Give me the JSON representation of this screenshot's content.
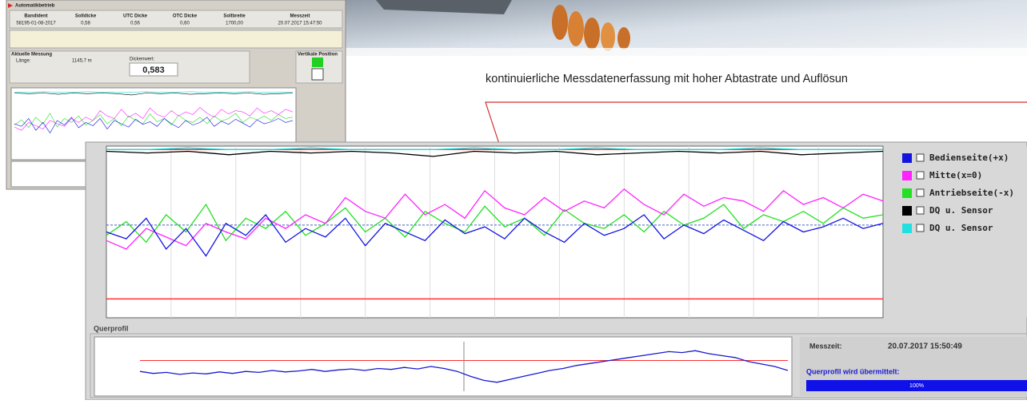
{
  "caption": "kontinuierliche Messdatenerfassung mit hoher Abtastrate und Auflösun",
  "small_screen": {
    "title": "Automatikbetrieb",
    "header": {
      "columns": [
        "Bandident",
        "Solldicke",
        "UTC Dicke",
        "OTC Dicke",
        "Sollbreite",
        "Messzeit"
      ],
      "values": [
        "58195-01-08-2017",
        "0,58",
        "0,56",
        "0,60",
        "1700,00",
        "20.07.2017 15:47:50"
      ]
    },
    "measurement": {
      "title": "Aktuelle Messung",
      "length_label": "Länge:",
      "length": "1145,7 m",
      "thickness_label": "Dickenwert:",
      "thickness": "0,583"
    },
    "position_title": "Vertikale Position"
  },
  "main_screen": {
    "chart": {
      "type": "line",
      "ylim": [
        0,
        100
      ],
      "limits": [
        98,
        11
      ],
      "limit_color": "#ff3030",
      "target": 54,
      "series": [
        {
          "name": "Bedienseite(+x)",
          "color": "#1414e0",
          "values": [
            50,
            46,
            58,
            40,
            52,
            36,
            55,
            48,
            60,
            44,
            52,
            47,
            58,
            42,
            55,
            50,
            45,
            57,
            49,
            53,
            46,
            58,
            50,
            44,
            55,
            48,
            52,
            60,
            46,
            54,
            49,
            57,
            51,
            45,
            56,
            50,
            53,
            58,
            52,
            55
          ]
        },
        {
          "name": "Mitte(x=0)",
          "color": "#ff22ff",
          "values": [
            45,
            40,
            52,
            47,
            42,
            55,
            50,
            46,
            58,
            52,
            60,
            55,
            70,
            62,
            58,
            72,
            60,
            66,
            58,
            74,
            64,
            60,
            70,
            62,
            68,
            64,
            75,
            66,
            60,
            72,
            65,
            70,
            68,
            62,
            74,
            66,
            70,
            64,
            72,
            68
          ]
        },
        {
          "name": "Antriebseite(-x)",
          "color": "#22e022",
          "values": [
            48,
            56,
            44,
            60,
            50,
            66,
            45,
            58,
            52,
            62,
            48,
            55,
            64,
            50,
            58,
            47,
            62,
            55,
            50,
            65,
            53,
            58,
            48,
            63,
            55,
            52,
            60,
            50,
            62,
            54,
            58,
            66,
            52,
            60,
            56,
            62,
            55,
            64,
            58,
            60
          ]
        },
        {
          "name": "DQ u. Sensor",
          "color": "#000000",
          "values": [
            97,
            96,
            97,
            95,
            97,
            96,
            97,
            96,
            94,
            97,
            96,
            97,
            95,
            96,
            97,
            96,
            97,
            95,
            96,
            97
          ]
        },
        {
          "name": "DQ u. Sensor",
          "color": "#22e0e0",
          "values": [
            98,
            98,
            99,
            98,
            98,
            99,
            98,
            98,
            98,
            99,
            98,
            98,
            99,
            98,
            98,
            98,
            99,
            98,
            98,
            98
          ]
        }
      ]
    }
  },
  "profile": {
    "title": "Querprofil",
    "time_label": "Messzeit:",
    "time": "20.07.2017 15:50:49",
    "status": "Querprofil wird übermittelt:",
    "progress": "100%",
    "chart": {
      "type": "line",
      "ylim": [
        0,
        100
      ],
      "limit": 62,
      "color": "#1a1ad0",
      "values": [
        40,
        36,
        38,
        34,
        37,
        35,
        39,
        36,
        40,
        38,
        42,
        39,
        41,
        44,
        40,
        43,
        45,
        42,
        46,
        44,
        48,
        45,
        50,
        46,
        40,
        30,
        22,
        18,
        24,
        30,
        36,
        42,
        46,
        52,
        56,
        60,
        64,
        68,
        72,
        76,
        80,
        78,
        82,
        76,
        72,
        68,
        60,
        55,
        50,
        42
      ]
    }
  }
}
